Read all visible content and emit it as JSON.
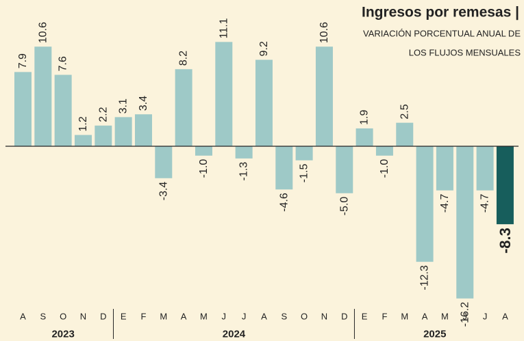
{
  "chart_data": {
    "type": "bar",
    "title": "Ingresos por remesas |",
    "subtitle_lines": [
      "VARIACIÓN PORCENTUAL ANUAL DE",
      "LOS FLUJOS MENSUALES"
    ],
    "categories": [
      "A",
      "S",
      "O",
      "N",
      "D",
      "E",
      "F",
      "M",
      "A",
      "M",
      "J",
      "J",
      "A",
      "S",
      "O",
      "N",
      "D",
      "E",
      "F",
      "M",
      "A",
      "M",
      "J",
      "J",
      "A"
    ],
    "years": [
      "2023",
      "2024",
      "2025"
    ],
    "values": [
      7.9,
      10.6,
      7.6,
      1.2,
      2.2,
      3.1,
      3.4,
      -3.4,
      8.2,
      -1.0,
      11.1,
      -1.3,
      9.2,
      -4.6,
      -1.5,
      10.6,
      -5.0,
      1.9,
      -1.0,
      2.5,
      -12.3,
      -4.7,
      -16.2,
      -4.7,
      -8.3
    ],
    "value_labels": [
      "7.9",
      "10.6",
      "7.6",
      "1.2",
      "2.2",
      "3.1",
      "3.4",
      "-3.4",
      "8.2",
      "-1.0",
      "11.1",
      "-1.3",
      "9.2",
      "-4.6",
      "-1.5",
      "10.6",
      "-5.0",
      "1.9",
      "-1.0",
      "2.5",
      "-12.3",
      "-4.7",
      "-16.2",
      "-4.7",
      "-8.3"
    ],
    "colors": [
      "#9ec9c7",
      "#9ec9c7",
      "#9ec9c7",
      "#9ec9c7",
      "#9ec9c7",
      "#9ec9c7",
      "#9ec9c7",
      "#9ec9c7",
      "#9ec9c7",
      "#9ec9c7",
      "#9ec9c7",
      "#9ec9c7",
      "#9ec9c7",
      "#9ec9c7",
      "#9ec9c7",
      "#9ec9c7",
      "#9ec9c7",
      "#9ec9c7",
      "#9ec9c7",
      "#9ec9c7",
      "#9ec9c7",
      "#9ec9c7",
      "#9ec9c7",
      "#9ec9c7",
      "#175e5c"
    ],
    "color": "#9ec9c7"
  }
}
